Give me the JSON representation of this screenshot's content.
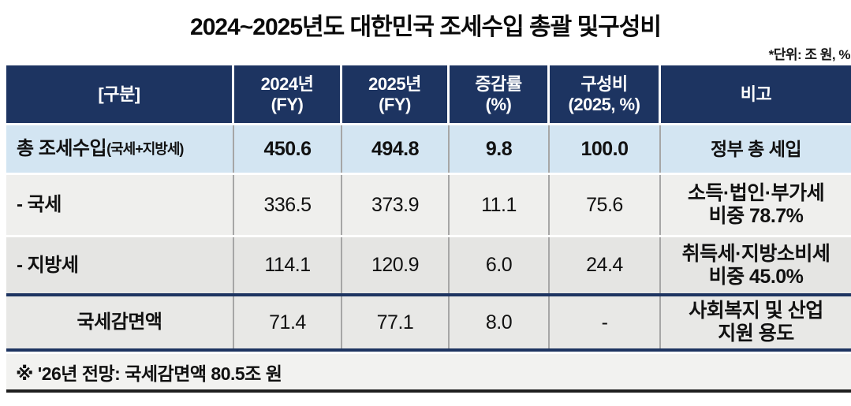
{
  "page": {
    "title": "2024~2025년도 대한민국 조세수입 총괄 및구성비",
    "unit_note": "*단위: 조 원, %"
  },
  "colors": {
    "header_bg": "#1d3461",
    "header_text": "#ffffff",
    "total_row_bg": "#d3e5f2",
    "row_bg_light": "#efefed",
    "row_bg_dark": "#e5e5e3",
    "footer_bg": "#f2f2f0",
    "cell_divider": "#a6a6a6",
    "section_line": "#1d3461",
    "bottom_line": "#1f1f1f",
    "text": "#111111"
  },
  "table": {
    "headers": [
      {
        "line1": "[구분]",
        "line2": ""
      },
      {
        "line1": "2024년",
        "line2": "(FY)"
      },
      {
        "line1": "2025년",
        "line2": "(FY)"
      },
      {
        "line1": "증감률",
        "line2": "(%)"
      },
      {
        "line1": "구성비",
        "line2": "(2025, %)"
      },
      {
        "line1": "비고",
        "line2": ""
      }
    ],
    "rows": [
      {
        "label": "총 조세수입",
        "label_suffix": "(국세+지방세)",
        "fy2024": "450.6",
        "fy2025": "494.8",
        "change_pct": "9.8",
        "share_pct": "100.0",
        "note_line1": "정부 총 세입",
        "note_line2": ""
      },
      {
        "label": "- 국세",
        "label_suffix": "",
        "fy2024": "336.5",
        "fy2025": "373.9",
        "change_pct": "11.1",
        "share_pct": "75.6",
        "note_line1": "소득·법인·부가세",
        "note_line2": "비중 78.7%"
      },
      {
        "label": "- 지방세",
        "label_suffix": "",
        "fy2024": "114.1",
        "fy2025": "120.9",
        "change_pct": "6.0",
        "share_pct": "24.4",
        "note_line1": "취득세·지방소비세",
        "note_line2": "비중 45.0%"
      },
      {
        "label": "국세감면액",
        "label_suffix": "",
        "fy2024": "71.4",
        "fy2025": "77.1",
        "change_pct": "8.0",
        "share_pct": "-",
        "note_line1": "사회복지 및 산업",
        "note_line2": "지원 용도"
      }
    ],
    "footnote": "※ '26년 전망: 국세감면액 80.5조 원"
  },
  "chart_data": {
    "type": "table",
    "title": "2024~2025년도 대한민국 조세수입 총괄 및구성비",
    "unit": "조 원, %",
    "columns": [
      "[구분]",
      "2024년 (FY)",
      "2025년 (FY)",
      "증감률 (%)",
      "구성비 (2025, %)",
      "비고"
    ],
    "rows": [
      [
        "총 조세수입(국세+지방세)",
        450.6,
        494.8,
        9.8,
        100.0,
        "정부 총 세입"
      ],
      [
        "- 국세",
        336.5,
        373.9,
        11.1,
        75.6,
        "소득·법인·부가세 비중 78.7%"
      ],
      [
        "- 지방세",
        114.1,
        120.9,
        6.0,
        24.4,
        "취득세·지방소비세 비중 45.0%"
      ],
      [
        "국세감면액",
        71.4,
        77.1,
        8.0,
        "-",
        "사회복지 및 산업 지원 용도"
      ]
    ],
    "footnote": "※ '26년 전망: 국세감면액 80.5조 원"
  }
}
